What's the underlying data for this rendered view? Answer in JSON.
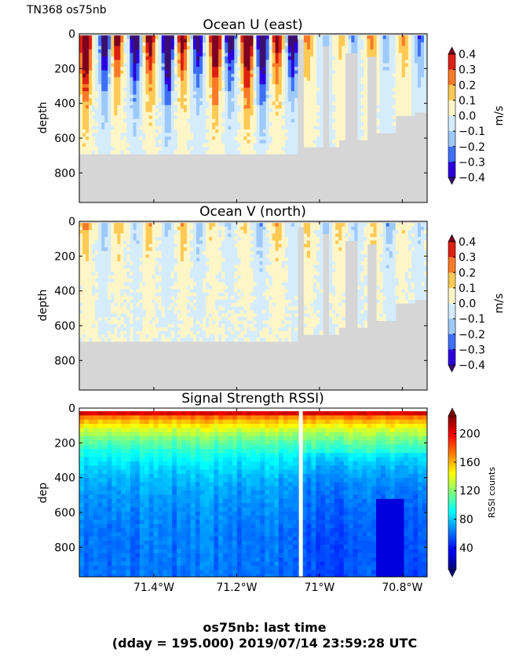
{
  "figure": {
    "suptitle": "TN368 os75nb",
    "footer_line1": "os75nb: last time",
    "footer_line2": "(dday = 195.000) 2019/07/14 23:59:28 UTC"
  },
  "colors": {
    "nodata": "#d6d6d6",
    "velocity_levels": [
      "#3b0f70",
      "#2b00e0",
      "#3d6ff7",
      "#9ec9fb",
      "#d5ecfc",
      "#fff6c8",
      "#feca55",
      "#fb7a28",
      "#dd2010",
      "#7d0020"
    ],
    "rssi_ramp": [
      "#00007f",
      "#0000ff",
      "#007fff",
      "#00ffff",
      "#7fff7f",
      "#ffff00",
      "#ff7f00",
      "#ff0000",
      "#7f0000"
    ]
  },
  "chart_data": [
    {
      "type": "heatmap",
      "title": "Ocean U (east)",
      "xlabel": "",
      "ylabel": "depth",
      "xlim": [
        71.58,
        70.74
      ],
      "ylim": [
        970,
        0
      ],
      "yticks": [
        "0",
        "200",
        "400",
        "600",
        "800"
      ],
      "ytick_values": [
        0,
        200,
        400,
        600,
        800
      ],
      "xticks": [
        "71.4°W",
        "71.2°W",
        "71°W",
        "70.8°W"
      ],
      "xtick_values": [
        71.4,
        71.2,
        71.0,
        70.8
      ],
      "show_xticklabels": false,
      "colorbar": {
        "label": "m/s",
        "ticks": [
          "0.4",
          "0.3",
          "0.2",
          "0.1",
          "0.0",
          "−0.1",
          "−0.2",
          "−0.3",
          "−0.4"
        ],
        "range": [
          -0.4,
          0.4
        ],
        "extend": "both"
      },
      "bottom_depth_m": 690,
      "pattern": "alternating eastward/westward jets in upper 300 m, weak below; no data below ~690 m and in gaps east of 71.05°W"
    },
    {
      "type": "heatmap",
      "title": "Ocean V (north)",
      "xlabel": "",
      "ylabel": "depth",
      "xlim": [
        71.58,
        70.74
      ],
      "ylim": [
        970,
        0
      ],
      "yticks": [
        "0",
        "200",
        "400",
        "600",
        "800"
      ],
      "ytick_values": [
        0,
        200,
        400,
        600,
        800
      ],
      "xticks": [
        "71.4°W",
        "71.2°W",
        "71°W",
        "70.8°W"
      ],
      "xtick_values": [
        71.4,
        71.2,
        71.0,
        70.8
      ],
      "show_xticklabels": false,
      "colorbar": {
        "label": "m/s",
        "ticks": [
          "0.4",
          "0.3",
          "0.2",
          "0.1",
          "0.0",
          "−0.1",
          "−0.2",
          "−0.3",
          "−0.4"
        ],
        "range": [
          -0.4,
          0.4
        ],
        "extend": "both"
      },
      "bottom_depth_m": 690,
      "pattern": "mostly weak (-0.1 to 0.1 m/s); patches of 0.1-0.2 m/s in mid-section"
    },
    {
      "type": "heatmap",
      "title": "Signal Strength RSSI)",
      "xlabel": "",
      "ylabel": "dep",
      "xlim": [
        71.58,
        70.74
      ],
      "ylim": [
        970,
        0
      ],
      "yticks": [
        "0",
        "200",
        "400",
        "600",
        "800"
      ],
      "ytick_values": [
        0,
        200,
        400,
        600,
        800
      ],
      "xticks": [
        "71.4°W",
        "71.2°W",
        "71°W",
        "70.8°W"
      ],
      "xtick_values": [
        71.4,
        71.2,
        71.0,
        70.8
      ],
      "show_xticklabels": true,
      "colorbar": {
        "label": "RSSI counts",
        "ticks": [
          "200",
          "160",
          "120",
          "80",
          "40"
        ],
        "tick_values": [
          200,
          160,
          120,
          80,
          40
        ],
        "range": [
          10,
          225
        ],
        "extend": "both"
      },
      "gap_longitude": 71.045,
      "pattern": "~200 counts near surface decreasing to ~50 counts at depth"
    }
  ]
}
